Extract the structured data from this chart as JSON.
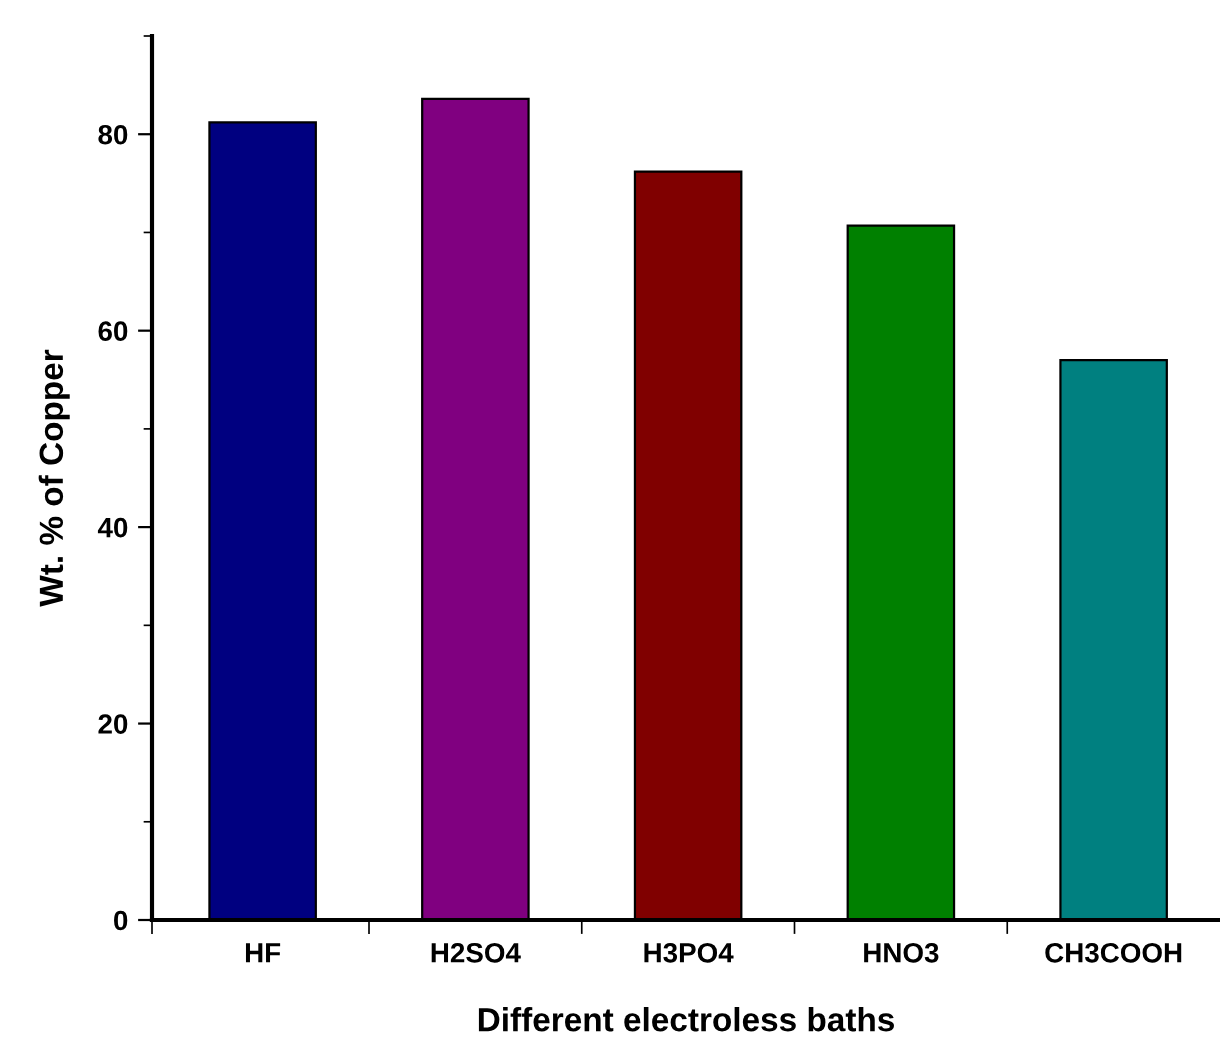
{
  "chart_data": {
    "type": "bar",
    "xlabel": "Different electroless baths",
    "ylabel": "Wt. % of Copper",
    "categories": [
      "HF",
      "H2SO4",
      "H3PO4",
      "HNO3",
      "CH3COOH"
    ],
    "values": [
      81.2,
      83.6,
      76.2,
      70.7,
      57.0
    ],
    "colors": [
      "#000080",
      "#800080",
      "#800000",
      "#008000",
      "#008080"
    ],
    "ylim": [
      0,
      90
    ],
    "yticks": [
      0,
      20,
      40,
      60,
      80
    ],
    "grid": false,
    "legend": false
  }
}
